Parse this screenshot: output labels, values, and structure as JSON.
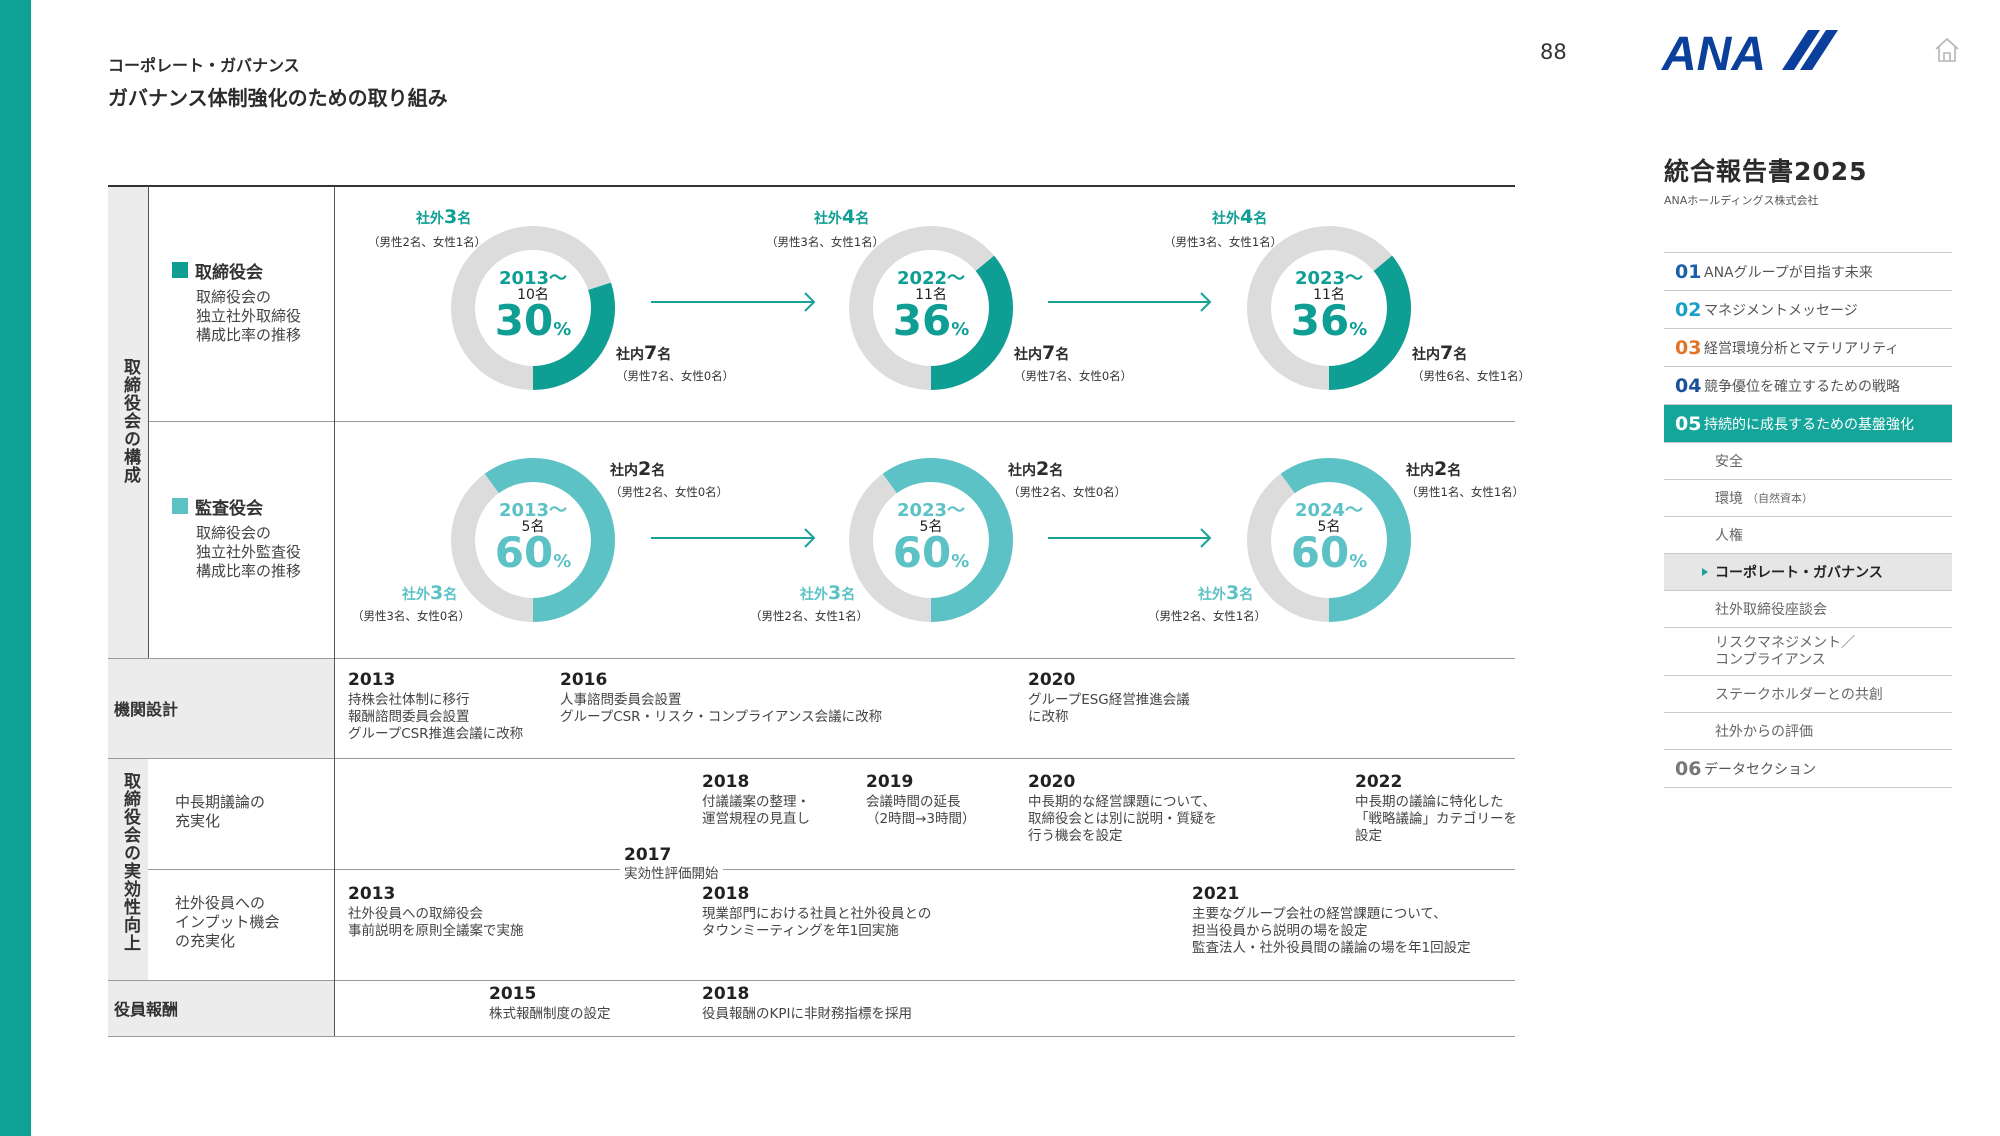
{
  "header": {
    "section": "コーポレート・ガバナンス",
    "title": "ガバナンス体制強化のための取り組み",
    "page_number": "88",
    "logo_text": "ANA",
    "report_title": "統合報告書2025",
    "company": "ANAホールディングス株式会社"
  },
  "nav": {
    "items": [
      {
        "num": "01",
        "label": "ANAグループが目指す未来",
        "color": "#1b5fa8"
      },
      {
        "num": "02",
        "label": "マネジメントメッセージ",
        "color": "#1aa0c8"
      },
      {
        "num": "03",
        "label": "経営環境分析とマテリアリティ",
        "color": "#e0752a"
      },
      {
        "num": "04",
        "label": "競争優位を確立するための戦略",
        "color": "#1b4f9a"
      },
      {
        "num": "05",
        "label": "持続的に成長するための基盤強化",
        "color": "#ffffff"
      }
    ],
    "sub_items": [
      "安全",
      "環境",
      "人権",
      "コーポレート・ガバナンス",
      "社外取締役座談会",
      "リスクマネジメント／",
      "コンプライアンス",
      "ステークホルダーとの共創",
      "社外からの評価"
    ],
    "sub_env_note": "（自然資本）",
    "last": {
      "num": "06",
      "label": "データセクション",
      "color": "#777777"
    }
  },
  "table": {
    "composition_label": "取締役会の構成",
    "board": {
      "title": "取締役会",
      "desc": "取締役会の\n独立社外取締役\n構成比率の推移",
      "color": "#0e9e94",
      "donuts": [
        {
          "year": "2013〜",
          "total": "10名",
          "pct": "30",
          "outside_label": "社外",
          "outside_n": "3",
          "outside_detail": "（男性2名、女性1名）",
          "inside_label": "社内",
          "inside_n": "7",
          "inside_detail": "（男性7名、女性0名）",
          "fraction": 0.3
        },
        {
          "year": "2022〜",
          "total": "11名",
          "pct": "36",
          "outside_label": "社外",
          "outside_n": "4",
          "outside_detail": "（男性3名、女性1名）",
          "inside_label": "社内",
          "inside_n": "7",
          "inside_detail": "（男性7名、女性0名）",
          "fraction": 0.36
        },
        {
          "year": "2023〜",
          "total": "11名",
          "pct": "36",
          "outside_label": "社外",
          "outside_n": "4",
          "outside_detail": "（男性3名、女性1名）",
          "inside_label": "社内",
          "inside_n": "7",
          "inside_detail": "（男性6名、女性1名）",
          "fraction": 0.36
        }
      ]
    },
    "audit": {
      "title": "監査役会",
      "desc": "取締役会の\n独立社外監査役\n構成比率の推移",
      "color": "#5cc2c6",
      "donuts": [
        {
          "year": "2013〜",
          "total": "5名",
          "pct": "60",
          "outside_label": "社外",
          "outside_n": "3",
          "outside_detail": "（男性3名、女性0名）",
          "inside_label": "社内",
          "inside_n": "2",
          "inside_detail": "（男性2名、女性0名）",
          "fraction": 0.6
        },
        {
          "year": "2023〜",
          "total": "5名",
          "pct": "60",
          "outside_label": "社外",
          "outside_n": "3",
          "outside_detail": "（男性2名、女性1名）",
          "inside_label": "社内",
          "inside_n": "2",
          "inside_detail": "（男性2名、女性0名）",
          "fraction": 0.6
        },
        {
          "year": "2024〜",
          "total": "5名",
          "pct": "60",
          "outside_label": "社外",
          "outside_n": "3",
          "outside_detail": "（男性2名、女性1名）",
          "inside_label": "社内",
          "inside_n": "2",
          "inside_detail": "（男性1名、女性1名）",
          "fraction": 0.6
        }
      ]
    },
    "pct_sign": "%",
    "organ": {
      "label": "機関設計",
      "events": [
        {
          "year": "2013",
          "text": "持株会社体制に移行\n報酬諮問委員会設置\nグループCSR推進会議に改称"
        },
        {
          "year": "2016",
          "text": "人事諮問委員会設置\nグループCSR・リスク・コンプライアンス会議に改称"
        },
        {
          "year": "2020",
          "text": "グループESG経営推進会議\nに改称"
        }
      ]
    },
    "effectiveness_label": "取締役会の実効性向上",
    "midterm": {
      "label": "中長期議論の\n充実化",
      "events": [
        {
          "year": "2018",
          "text": "付議議案の整理・\n運営規程の見直し"
        },
        {
          "year": "2019",
          "text": "会議時間の延長\n（2時間→3時間）"
        },
        {
          "year": "2020",
          "text": "中長期的な経営課題について、\n取締役会とは別に説明・質疑を\n行う機会を設定"
        },
        {
          "year": "2022",
          "text": "中長期の議論に特化した\n「戦略議論」カテゴリーを\n設定"
        }
      ]
    },
    "evaluation": {
      "year": "2017",
      "text": "実効性評価開始"
    },
    "input": {
      "label": "社外役員への\nインプット機会\nの充実化",
      "events": [
        {
          "year": "2013",
          "text": "社外役員への取締役会\n事前説明を原則全議案で実施"
        },
        {
          "year": "2018",
          "text": "現業部門における社員と社外役員との\nタウンミーティングを年1回実施"
        },
        {
          "year": "2021",
          "text": "主要なグループ会社の経営課題について、\n担当役員から説明の場を設定\n監査法人・社外役員間の議論の場を年1回設定"
        }
      ]
    },
    "pay": {
      "label": "役員報酬",
      "events": [
        {
          "year": "2015",
          "text": "株式報酬制度の設定"
        },
        {
          "year": "2018",
          "text": "役員報酬のKPIに非財務指標を採用"
        }
      ]
    }
  }
}
